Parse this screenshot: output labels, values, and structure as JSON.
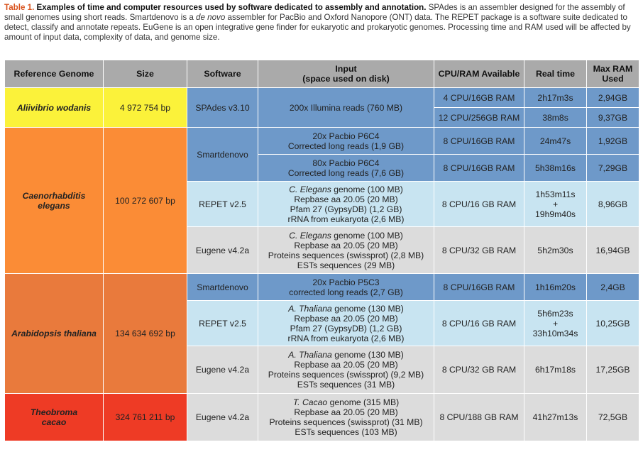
{
  "caption": {
    "label": "Table 1.",
    "title": "Examples of time and computer resources used by software dedicated to assembly and annotation.",
    "text_1": "SPAdes is an assembler designed for the assembly of small genomes using short reads. Smartdenovo is a",
    "text_italic": "de novo",
    "text_2": "assembler for PacBio and Oxford Nanopore (ONT) data. The REPET package is a software suite dedicated to detect, classify and annotate repeats. EuGene is an open integrative gene finder for eukaryotic and prokaryotic genomes. Processing time and RAM used will be affected by amount of input data, complexity of data, and genome size."
  },
  "headers": {
    "genome": "Reference Genome",
    "size": "Size",
    "software": "Software",
    "input_1": "Input",
    "input_2": "(space used on disk)",
    "cpu": "CPU/RAM Available",
    "time": "Real time",
    "ram_1": "Max RAM",
    "ram_2": "Used"
  },
  "genomes": {
    "vibrio": {
      "name": "Aliivibrio wodanis",
      "size": "4 972 754 bp"
    },
    "elegans": {
      "name_1": "Caenorhabditis",
      "name_2": "elegans",
      "size": "100 272 607 bp"
    },
    "thaliana": {
      "name": "Arabidopsis thaliana",
      "size": "134 634 692 bp"
    },
    "cacao": {
      "name_1": "Theobroma",
      "name_2": "cacao",
      "size": "324 761 211 bp"
    }
  },
  "rows": {
    "r1": {
      "software": "SPAdes v3.10",
      "input": "200x Illumina reads (760 MB)",
      "cpu": "4 CPU/16GB RAM",
      "time": "2h17m3s",
      "ram": "2,94GB"
    },
    "r2": {
      "cpu": "12 CPU/256GB RAM",
      "time": "38m8s",
      "ram": "9,37GB"
    },
    "r3": {
      "software": "Smartdenovo",
      "input_1": "20x Pacbio P6C4",
      "input_2": "Corrected long reads (1,9 GB)",
      "cpu": "8 CPU/16GB RAM",
      "time": "24m47s",
      "ram": "1,92GB"
    },
    "r4": {
      "input_1": "80x Pacbio P6C4",
      "input_2": "Corrected long reads (7,6 GB)",
      "cpu": "8 CPU/16GB RAM",
      "time": "5h38m16s",
      "ram": "7,29GB"
    },
    "r5": {
      "software": "REPET v2.5",
      "input_1a": "C. Elegans",
      "input_1b": "genome (100 MB)",
      "input_2": "Repbase aa 20.05 (20 MB)",
      "input_3": "Pfam 27 (GypsyDB) (1,2 GB)",
      "input_4": "rRNA from eukaryota (2,6 MB)",
      "cpu": "8 CPU/16 GB RAM",
      "time_1": "1h53m11s",
      "time_2": "+",
      "time_3": "19h9m40s",
      "ram": "8,96GB"
    },
    "r6": {
      "software": "Eugene v4.2a",
      "input_1a": "C. Elegans",
      "input_1b": "genome (100 MB)",
      "input_2": "Repbase aa 20.05 (20 MB)",
      "input_3": "Proteins sequences (swissprot) (2,8 MB)",
      "input_4": "ESTs sequences (29 MB)",
      "cpu": "8 CPU/32 GB RAM",
      "time": "5h2m30s",
      "ram": "16,94GB"
    },
    "r7": {
      "software": "Smartdenovo",
      "input_1": "20x Pacbio P5C3",
      "input_2": "corrected long reads (2,7 GB)",
      "cpu": "8 CPU/16GB RAM",
      "time": "1h16m20s",
      "ram": "2,4GB"
    },
    "r8": {
      "software": "REPET v2.5",
      "input_1a": "A. Thaliana",
      "input_1b": "genome (130 MB)",
      "input_2": "Repbase aa 20.05 (20 MB)",
      "input_3": "Pfam 27 (GypsyDB) (1,2 GB)",
      "input_4": "rRNA from eukaryota (2,6 MB)",
      "cpu": "8 CPU/16 GB RAM",
      "time_1": "5h6m23s",
      "time_2": "+",
      "time_3": "33h10m34s",
      "ram": "10,25GB"
    },
    "r9": {
      "software": "Eugene v4.2a",
      "input_1a": "A. Thaliana",
      "input_1b": "genome (130 MB)",
      "input_2": "Repbase aa 20.05 (20 MB)",
      "input_3": "Proteins sequences (swissprot) (9,2 MB)",
      "input_4": "ESTs sequences (31 MB)",
      "cpu": "8 CPU/32 GB RAM",
      "time": "6h17m18s",
      "ram": "17,25GB"
    },
    "r10": {
      "software": "Eugene v4.2a",
      "input_1a": "T. Cacao",
      "input_1b": "genome (315 MB)",
      "input_2": "Repbase aa 20.05 (20 MB)",
      "input_3": "Proteins sequences (swissprot) (31 MB)",
      "input_4": "ESTs sequences (103 MB)",
      "cpu": "8 CPU/188 GB RAM",
      "time": "41h27m13s",
      "ram": "72,5GB"
    }
  },
  "colors": {
    "caption_label": "#d9531e",
    "header_bg": "#aaaaaa",
    "vibrio": "#fbf23a",
    "elegans": "#fb8c36",
    "thaliana": "#e97a3c",
    "cacao": "#ee3b25",
    "assembly_blue": "#6e99c9",
    "repet_lightblue": "#c8e4f1",
    "eugene_grey": "#dcdcdc"
  }
}
